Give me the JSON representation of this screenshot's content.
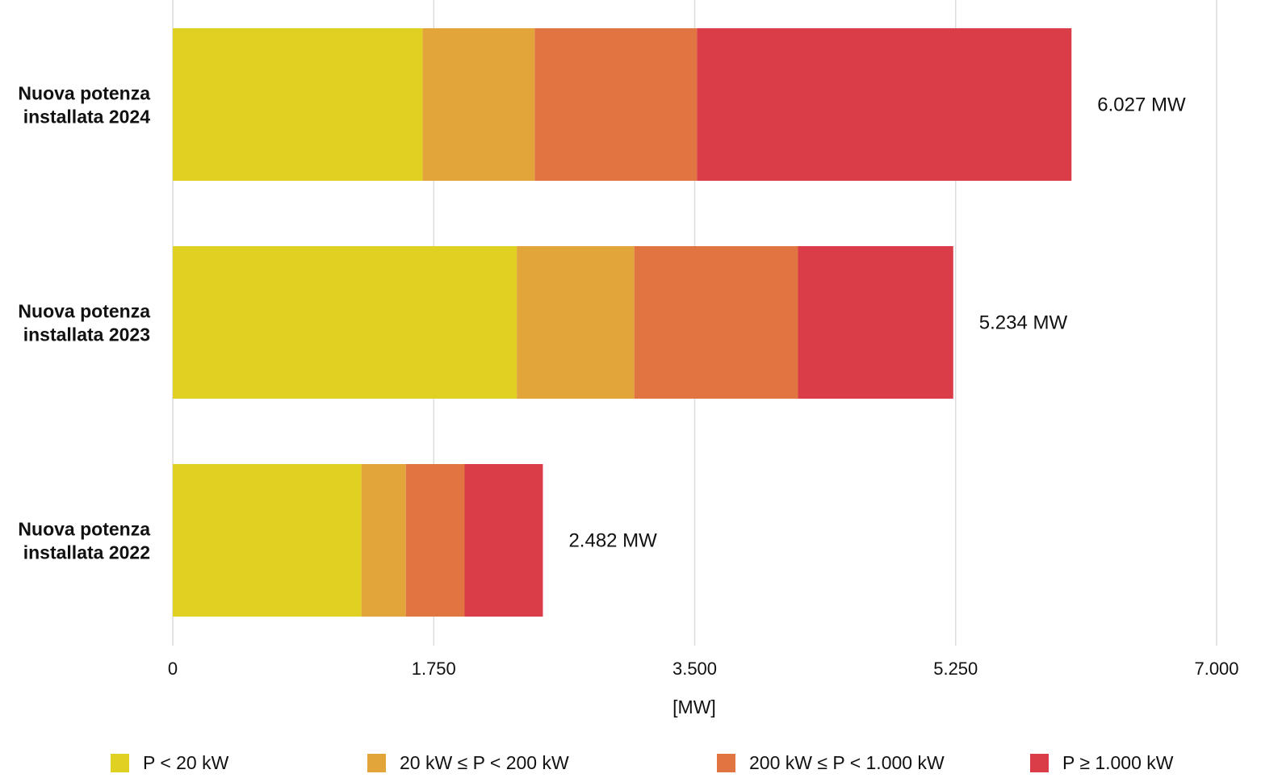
{
  "chart_data": {
    "type": "bar",
    "orientation": "horizontal",
    "stacked": true,
    "categories": [
      "Nuova potenza installata 2024",
      "Nuova potenza installata 2023",
      "Nuova potenza installata 2022"
    ],
    "category_lines": [
      [
        "Nuova potenza",
        "installata 2024"
      ],
      [
        "Nuova potenza",
        "installata 2023"
      ],
      [
        "Nuova potenza",
        "installata 2022"
      ]
    ],
    "series": [
      {
        "name": "P < 20 kW",
        "color": "#e0d022",
        "values": [
          1675,
          2307,
          1265
        ]
      },
      {
        "name": "20 kW ≤ P < 200 kW",
        "color": "#e1a53a",
        "values": [
          752,
          788,
          298
        ]
      },
      {
        "name": "200 kW ≤ P < 1.000 kW",
        "color": "#e07541",
        "values": [
          1088,
          1098,
          394
        ]
      },
      {
        "name": "P ≥ 1.000 kW",
        "color": "#da3c48",
        "values": [
          2512,
          1041,
          525
        ]
      }
    ],
    "totals": [
      6027,
      5234,
      2482
    ],
    "total_labels": [
      "6.027 MW",
      "5.234 MW",
      "2.482 MW"
    ],
    "xlim": [
      0,
      7000
    ],
    "xticks": [
      0,
      1750,
      3500,
      5250,
      7000
    ],
    "xtick_labels": [
      "0",
      "1.750",
      "3.500",
      "5.250",
      "7.000"
    ],
    "xlabel": "[MW]",
    "ylabel": "",
    "title": "",
    "grid": true,
    "legend_position": "bottom"
  }
}
